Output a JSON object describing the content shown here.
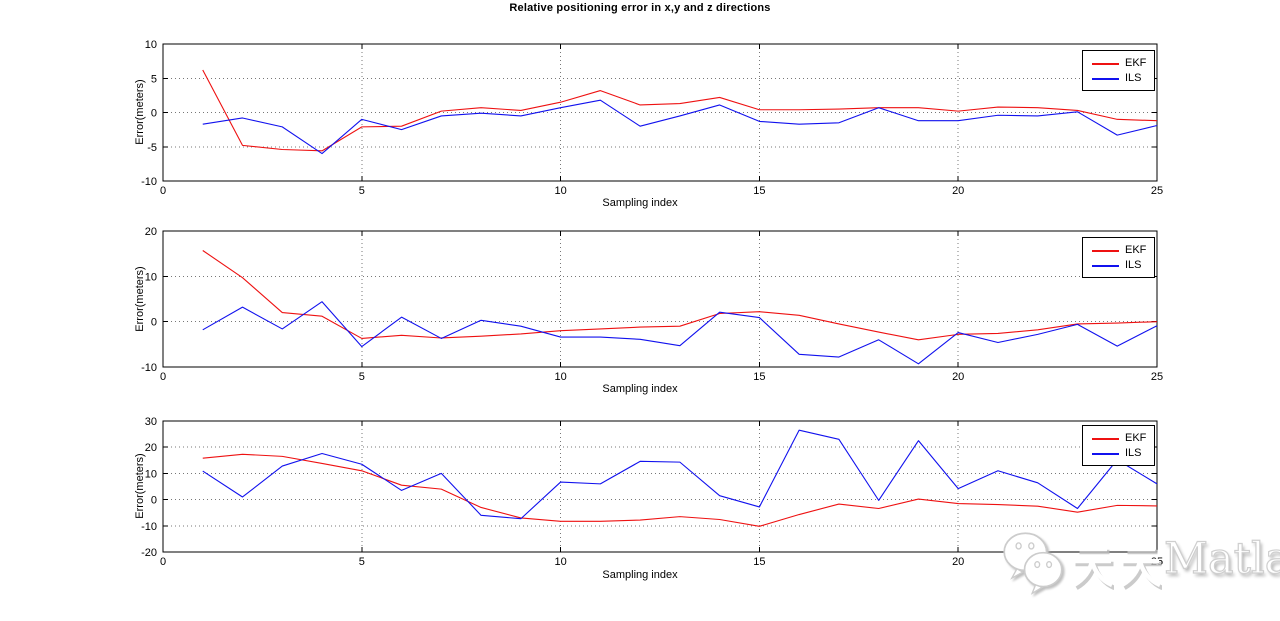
{
  "figure": {
    "title": "Relative positioning error in x,y and z directions",
    "watermark": {
      "icon": "wechat-icon",
      "text": "天天Matlab",
      "latin": "Matlab"
    }
  },
  "chart_data": [
    {
      "type": "line",
      "subplot": "x-direction-error",
      "xlabel": "Sampling index",
      "ylabel": "Error(meters)",
      "xlim": [
        0,
        25
      ],
      "ylim": [
        -10,
        10
      ],
      "xticks": [
        0,
        5,
        10,
        15,
        20,
        25
      ],
      "yticks": [
        -10,
        -5,
        0,
        5,
        10
      ],
      "grid": true,
      "legend_position": "top-right",
      "x": [
        1,
        2,
        3,
        4,
        5,
        6,
        7,
        8,
        9,
        10,
        11,
        12,
        13,
        14,
        15,
        16,
        17,
        18,
        19,
        20,
        21,
        22,
        23,
        24,
        25
      ],
      "series": [
        {
          "name": "EKF",
          "color": "#ee1111",
          "values": [
            6.2,
            -4.8,
            -5.4,
            -5.6,
            -2.1,
            -2.0,
            0.2,
            0.7,
            0.3,
            1.5,
            3.2,
            1.1,
            1.3,
            2.2,
            0.4,
            0.4,
            0.5,
            0.7,
            0.7,
            0.2,
            0.8,
            0.7,
            0.3,
            -1.0,
            -1.2
          ]
        },
        {
          "name": "ILS",
          "color": "#1111ee",
          "values": [
            -1.7,
            -0.8,
            -2.1,
            -6.0,
            -1.0,
            -2.5,
            -0.5,
            -0.1,
            -0.5,
            0.7,
            1.8,
            -2.0,
            -0.5,
            1.1,
            -1.3,
            -1.7,
            -1.5,
            0.7,
            -1.2,
            -1.2,
            -0.4,
            -0.5,
            0.1,
            -3.3,
            -1.9
          ]
        }
      ]
    },
    {
      "type": "line",
      "subplot": "y-direction-error",
      "xlabel": "Sampling index",
      "ylabel": "Error(meters)",
      "xlim": [
        0,
        25
      ],
      "ylim": [
        -10,
        20
      ],
      "xticks": [
        0,
        5,
        10,
        15,
        20,
        25
      ],
      "yticks": [
        -10,
        0,
        10,
        20
      ],
      "grid": true,
      "legend_position": "top-right",
      "x": [
        1,
        2,
        3,
        4,
        5,
        6,
        7,
        8,
        9,
        10,
        11,
        12,
        13,
        14,
        15,
        16,
        17,
        18,
        19,
        20,
        21,
        22,
        23,
        24,
        25
      ],
      "series": [
        {
          "name": "EKF",
          "color": "#ee1111",
          "values": [
            15.7,
            9.7,
            2.0,
            1.2,
            -3.7,
            -3.0,
            -3.6,
            -3.2,
            -2.7,
            -2.0,
            -1.6,
            -1.2,
            -1.0,
            1.8,
            2.2,
            1.4,
            -0.5,
            -2.3,
            -4.0,
            -2.8,
            -2.6,
            -1.8,
            -0.5,
            -0.3,
            0.0
          ]
        },
        {
          "name": "ILS",
          "color": "#1111ee",
          "values": [
            -1.8,
            3.2,
            -1.6,
            4.4,
            -5.5,
            1.0,
            -3.7,
            0.3,
            -1.0,
            -3.4,
            -3.4,
            -3.9,
            -5.3,
            2.1,
            0.9,
            -7.2,
            -7.8,
            -4.0,
            -9.3,
            -2.4,
            -4.6,
            -2.8,
            -0.6,
            -5.4,
            -0.9
          ]
        }
      ]
    },
    {
      "type": "line",
      "subplot": "z-direction-error",
      "xlabel": "Sampling index",
      "ylabel": "Error(meters)",
      "xlim": [
        0,
        25
      ],
      "ylim": [
        -20,
        30
      ],
      "xticks": [
        0,
        5,
        10,
        15,
        20,
        25
      ],
      "yticks": [
        -20,
        -10,
        0,
        10,
        20,
        30
      ],
      "grid": true,
      "legend_position": "top-right",
      "x": [
        1,
        2,
        3,
        4,
        5,
        6,
        7,
        8,
        9,
        10,
        11,
        12,
        13,
        14,
        15,
        16,
        17,
        18,
        19,
        20,
        21,
        22,
        23,
        24,
        25
      ],
      "series": [
        {
          "name": "EKF",
          "color": "#ee1111",
          "values": [
            15.8,
            17.3,
            16.5,
            13.8,
            11.0,
            5.5,
            4.0,
            -3.0,
            -7.0,
            -8.3,
            -8.3,
            -7.8,
            -6.5,
            -7.6,
            -10.2,
            -5.7,
            -1.7,
            -3.4,
            0.2,
            -1.5,
            -1.9,
            -2.5,
            -4.8,
            -2.2,
            -2.4
          ]
        },
        {
          "name": "ILS",
          "color": "#1111ee",
          "values": [
            10.9,
            1.0,
            12.8,
            17.6,
            13.5,
            3.5,
            10.0,
            -6.0,
            -7.3,
            6.7,
            6.0,
            14.6,
            14.3,
            1.5,
            -2.8,
            26.5,
            23.0,
            -0.3,
            22.5,
            4.2,
            11.0,
            6.4,
            -3.4,
            15.2,
            6.0
          ]
        }
      ]
    }
  ]
}
